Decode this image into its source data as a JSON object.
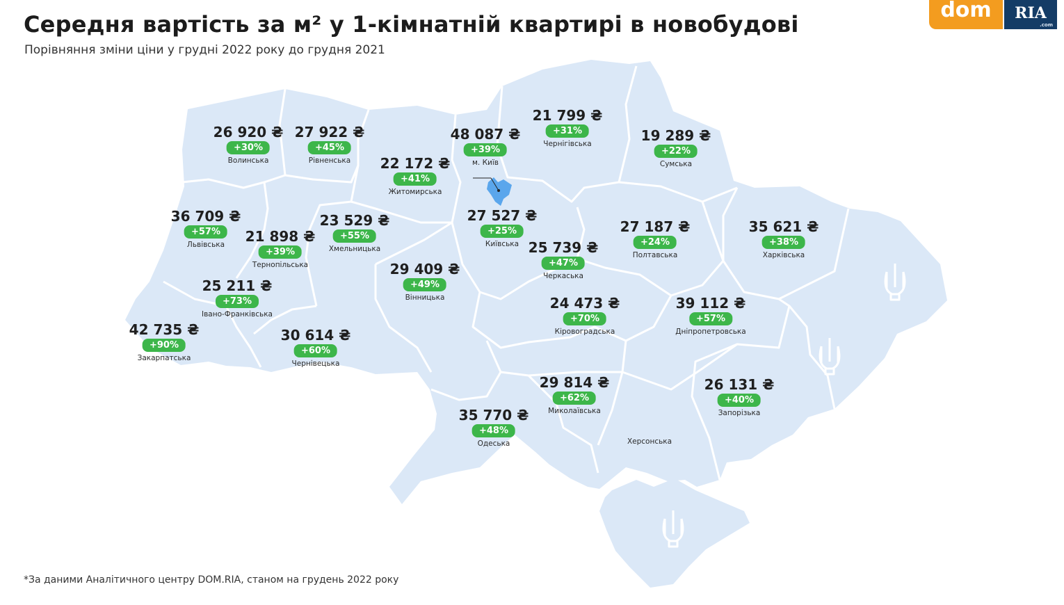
{
  "title": "Середня вартість за м² у 1-кімнатній квартирі в новобудові",
  "subtitle": "Порівняння зміни ціни у грудні 2022 року до грудня 2021",
  "footnote": "*За даними Аналітичного центру DOM.RIA, станом на грудень 2022 року",
  "logo": {
    "dom": "dom",
    "ria": "RIA",
    "com": ".com"
  },
  "colors": {
    "map_fill": "#dbe8f7",
    "border": "#ffffff",
    "badge": "#3db64a",
    "kyiv_city": "#5aa6ec",
    "logo_orange": "#f39c1f",
    "logo_navy": "#143c66"
  },
  "regions": [
    {
      "name": "Волинська",
      "price": "26 920 ₴",
      "change": "+30%"
    },
    {
      "name": "Рівненська",
      "price": "27 922 ₴",
      "change": "+45%"
    },
    {
      "name": "Житомирська",
      "price": "22 172 ₴",
      "change": "+41%"
    },
    {
      "name": "м. Київ",
      "price": "48 087 ₴",
      "change": "+39%"
    },
    {
      "name": "Чернігівська",
      "price": "21 799 ₴",
      "change": "+31%"
    },
    {
      "name": "Сумська",
      "price": "19 289 ₴",
      "change": "+22%"
    },
    {
      "name": "Львівська",
      "price": "36 709 ₴",
      "change": "+57%"
    },
    {
      "name": "Тернопільська",
      "price": "21 898 ₴",
      "change": "+39%"
    },
    {
      "name": "Хмельницька",
      "price": "23 529 ₴",
      "change": "+55%"
    },
    {
      "name": "Київська",
      "price": "27 527 ₴",
      "change": "+25%"
    },
    {
      "name": "Полтавська",
      "price": "27 187 ₴",
      "change": "+24%"
    },
    {
      "name": "Харківська",
      "price": "35 621 ₴",
      "change": "+38%"
    },
    {
      "name": "Черкаська",
      "price": "25 739 ₴",
      "change": "+47%"
    },
    {
      "name": "Вінницька",
      "price": "29 409 ₴",
      "change": "+49%"
    },
    {
      "name": "Івано-Франківська",
      "price": "25 211 ₴",
      "change": "+73%"
    },
    {
      "name": "Кіровоградська",
      "price": "24 473 ₴",
      "change": "+70%"
    },
    {
      "name": "Дніпропетровська",
      "price": "39 112 ₴",
      "change": "+57%"
    },
    {
      "name": "Закарпатська",
      "price": "42 735 ₴",
      "change": "+90%"
    },
    {
      "name": "Чернівецька",
      "price": "30 614 ₴",
      "change": "+60%"
    },
    {
      "name": "Миколаївська",
      "price": "29 814 ₴",
      "change": "+62%"
    },
    {
      "name": "Запорізька",
      "price": "26 131 ₴",
      "change": "+40%"
    },
    {
      "name": "Одеська",
      "price": "35 770 ₴",
      "change": "+48%"
    },
    {
      "name": "Херсонська",
      "price": "",
      "change": ""
    }
  ],
  "icons": [
    "trident-icon",
    "trident-icon",
    "trident-icon"
  ]
}
